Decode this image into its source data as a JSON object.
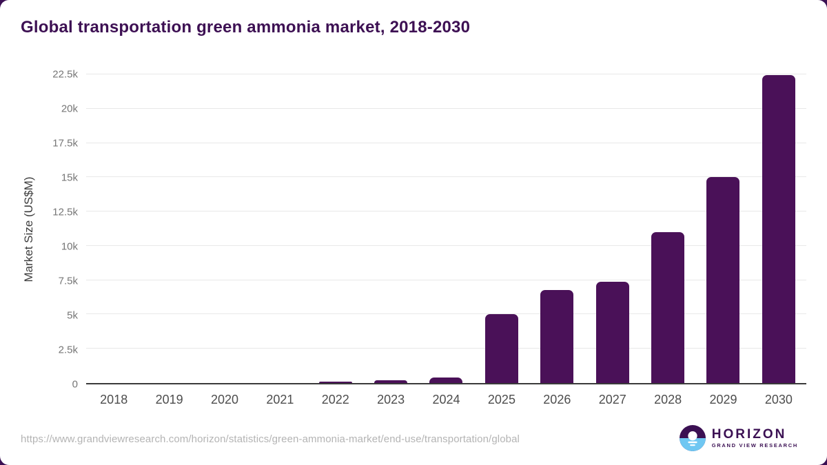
{
  "title": "Global transportation green ammonia market, 2018-2030",
  "chart_data": {
    "type": "bar",
    "title": "Global transportation green ammonia market, 2018-2030",
    "categories": [
      "2018",
      "2019",
      "2020",
      "2021",
      "2022",
      "2023",
      "2024",
      "2025",
      "2026",
      "2027",
      "2028",
      "2029",
      "2030"
    ],
    "values": [
      0,
      0,
      0,
      0,
      100,
      200,
      400,
      5000,
      6800,
      7400,
      11000,
      15000,
      22450
    ],
    "xlabel": "",
    "ylabel": "Market Size (US$M)",
    "ylim": [
      0,
      22500
    ],
    "ytick_step": 2500,
    "ytick_labels": [
      "0",
      "2.5k",
      "5k",
      "7.5k",
      "10k",
      "12.5k",
      "15k",
      "17.5k",
      "20k",
      "22.5k"
    ],
    "grid": true,
    "legend": false,
    "bar_color": "#4a1158",
    "gridline_color": "#e8e8e8",
    "axis_line_color": "#3a3a3a"
  },
  "footer": {
    "source_url": "https://www.grandviewresearch.com/horizon/statistics/green-ammonia-market/end-use/transportation/global",
    "logo": {
      "name": "HORIZON",
      "subtitle": "GRAND VIEW RESEARCH",
      "purple": "#3b1053",
      "blue": "#6fc7f2"
    }
  }
}
